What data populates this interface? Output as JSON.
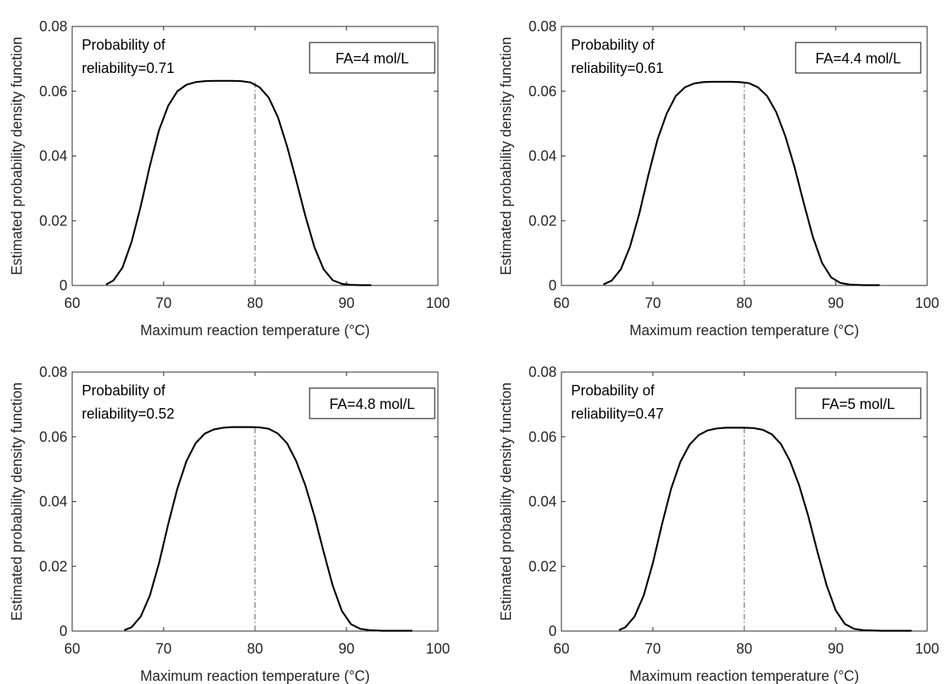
{
  "chart_data": [
    {
      "type": "line",
      "xlabel": "Maximum reaction temperature (°C)",
      "ylabel": "Estimated probability density function",
      "xlim": [
        60,
        100
      ],
      "ylim": [
        0,
        0.08
      ],
      "xticks": [
        "60",
        "70",
        "80",
        "90",
        "100"
      ],
      "yticks": [
        "0",
        "0.02",
        "0.04",
        "0.06",
        "0.08"
      ],
      "annotation_lines": [
        "Probability of",
        "reliability=0.71"
      ],
      "legend_box": "FA=4 mol/L",
      "reference_line_x": 80,
      "series": [
        {
          "x": [
            63.7,
            64.5,
            65.5,
            66.5,
            67.5,
            68.5,
            69.5,
            70.5,
            71.5,
            72.5,
            73.5,
            74.5,
            75.5,
            76.5,
            77.5,
            78.5,
            79.5,
            80.5,
            81.5,
            82.5,
            83.5,
            84.5,
            85.5,
            86.5,
            87.5,
            88.5,
            89.5,
            90.5,
            91.5,
            92.7
          ],
          "y": [
            0.0003,
            0.0015,
            0.0055,
            0.0135,
            0.0245,
            0.037,
            0.048,
            0.0555,
            0.06,
            0.062,
            0.0628,
            0.0631,
            0.0632,
            0.0632,
            0.0632,
            0.0631,
            0.0627,
            0.0612,
            0.058,
            0.052,
            0.043,
            0.0325,
            0.0215,
            0.0118,
            0.005,
            0.0016,
            0.0005,
            0.0002,
            0.0001,
            0.0001
          ]
        }
      ]
    },
    {
      "type": "line",
      "xlabel": "Maximum reaction temperature (°C)",
      "ylabel": "Estimated probability density function",
      "xlim": [
        60,
        100
      ],
      "ylim": [
        0,
        0.08
      ],
      "xticks": [
        "60",
        "70",
        "80",
        "90",
        "100"
      ],
      "yticks": [
        "0",
        "0.02",
        "0.04",
        "0.06",
        "0.08"
      ],
      "annotation_lines": [
        "Probability of",
        "reliability=0.61"
      ],
      "legend_box": "FA=4.4 mol/L",
      "reference_line_x": 80,
      "series": [
        {
          "x": [
            64.6,
            65.5,
            66.5,
            67.5,
            68.5,
            69.5,
            70.5,
            71.5,
            72.5,
            73.5,
            74.5,
            75.5,
            76.5,
            77.5,
            78.5,
            79.5,
            80.5,
            81.5,
            82.5,
            83.5,
            84.5,
            85.5,
            86.5,
            87.5,
            88.5,
            89.5,
            90.5,
            91.5,
            93.0,
            94.8
          ],
          "y": [
            0.0003,
            0.0015,
            0.005,
            0.012,
            0.022,
            0.034,
            0.045,
            0.053,
            0.0585,
            0.0612,
            0.0624,
            0.0628,
            0.0629,
            0.0629,
            0.0629,
            0.0628,
            0.0625,
            0.0612,
            0.0585,
            0.0535,
            0.046,
            0.0365,
            0.0255,
            0.015,
            0.007,
            0.0025,
            0.0008,
            0.0003,
            0.0001,
            0.0001
          ]
        }
      ]
    },
    {
      "type": "line",
      "xlabel": "Maximum reaction temperature (°C)",
      "ylabel": "Estimated probability density function",
      "xlim": [
        60,
        100
      ],
      "ylim": [
        0,
        0.08
      ],
      "xticks": [
        "60",
        "70",
        "80",
        "90",
        "100"
      ],
      "yticks": [
        "0",
        "0.02",
        "0.04",
        "0.06",
        "0.08"
      ],
      "annotation_lines": [
        "Probability of",
        "reliability=0.52"
      ],
      "legend_box": "FA=4.8 mol/L",
      "reference_line_x": 80,
      "series": [
        {
          "x": [
            65.7,
            66.5,
            67.5,
            68.5,
            69.5,
            70.5,
            71.5,
            72.5,
            73.5,
            74.5,
            75.5,
            76.5,
            77.5,
            78.5,
            79.5,
            80.5,
            81.5,
            82.5,
            83.5,
            84.5,
            85.5,
            86.5,
            87.5,
            88.5,
            89.5,
            90.5,
            91.5,
            92.5,
            94.0,
            97.2
          ],
          "y": [
            0.0003,
            0.0012,
            0.0045,
            0.011,
            0.021,
            0.033,
            0.044,
            0.0525,
            0.058,
            0.061,
            0.0623,
            0.0628,
            0.063,
            0.063,
            0.063,
            0.0629,
            0.0625,
            0.061,
            0.058,
            0.0525,
            0.045,
            0.0355,
            0.0245,
            0.014,
            0.0062,
            0.0021,
            0.0007,
            0.0003,
            0.0001,
            0.0001
          ]
        }
      ]
    },
    {
      "type": "line",
      "xlabel": "Maximum reaction temperature (°C)",
      "ylabel": "Estimated probability density function",
      "xlim": [
        60,
        100
      ],
      "ylim": [
        0,
        0.08
      ],
      "xticks": [
        "60",
        "70",
        "80",
        "90",
        "100"
      ],
      "yticks": [
        "0",
        "0.02",
        "0.04",
        "0.06",
        "0.08"
      ],
      "annotation_lines": [
        "Probability of",
        "reliability=0.47"
      ],
      "legend_box": "FA=5 mol/L",
      "reference_line_x": 80,
      "series": [
        {
          "x": [
            66.3,
            67.0,
            68.0,
            69.0,
            70.0,
            71.0,
            72.0,
            73.0,
            74.0,
            75.0,
            76.0,
            77.0,
            78.0,
            79.0,
            80.0,
            81.0,
            82.0,
            83.0,
            84.0,
            85.0,
            86.0,
            87.0,
            88.0,
            89.0,
            90.0,
            91.0,
            92.0,
            93.0,
            95.0,
            98.3
          ],
          "y": [
            0.0003,
            0.0012,
            0.0045,
            0.011,
            0.021,
            0.033,
            0.044,
            0.0522,
            0.0575,
            0.0605,
            0.062,
            0.0626,
            0.0628,
            0.0628,
            0.0628,
            0.0627,
            0.0622,
            0.0608,
            0.0578,
            0.0525,
            0.045,
            0.0355,
            0.0245,
            0.0142,
            0.0064,
            0.0022,
            0.0007,
            0.0003,
            0.0001,
            0.0001
          ]
        }
      ]
    }
  ]
}
